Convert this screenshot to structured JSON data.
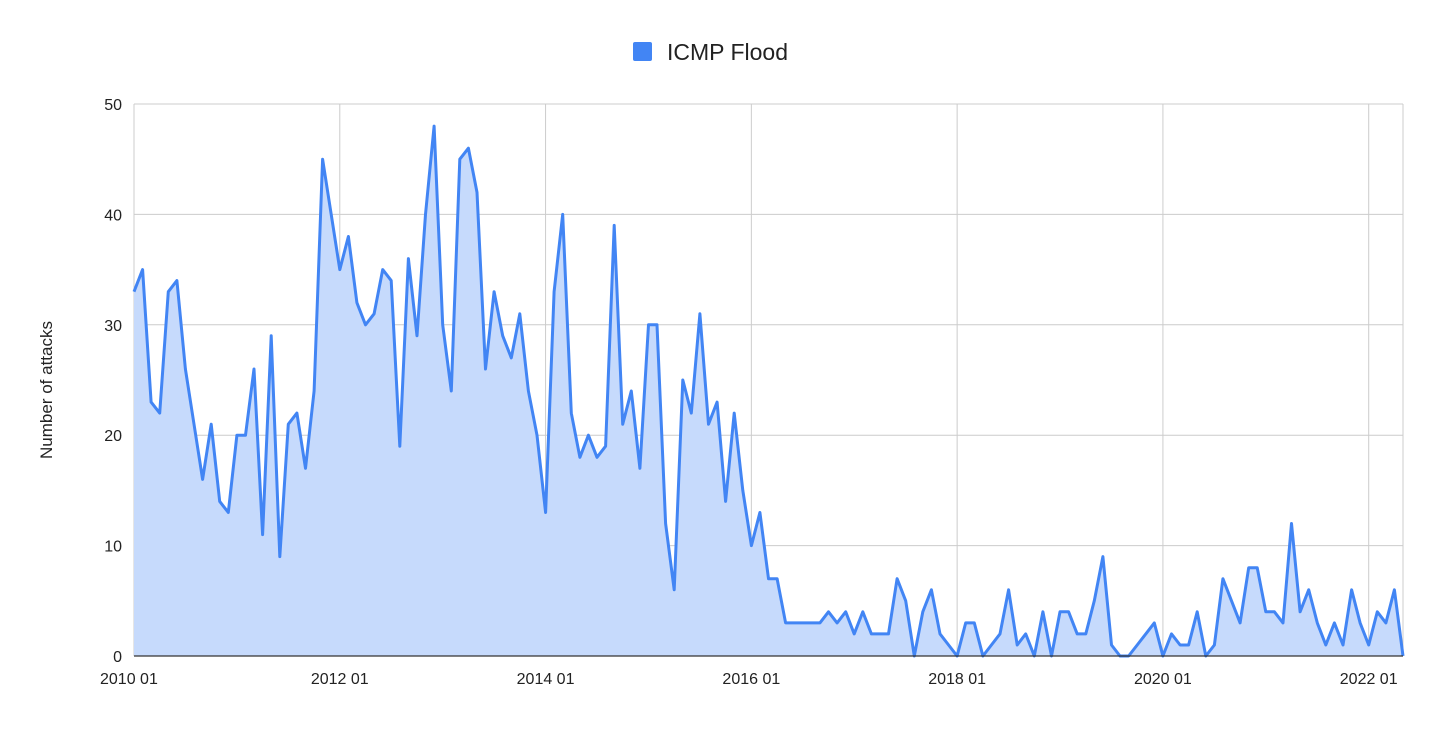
{
  "chart_data": {
    "type": "area",
    "title": "",
    "xlabel": "",
    "ylabel": "Number of attacks",
    "ylim": [
      0,
      50
    ],
    "yticks": [
      0,
      10,
      20,
      30,
      40,
      50
    ],
    "x_start": "2010-01",
    "x_end": "2022-05",
    "x_interval": "month",
    "xtick_labels": [
      "2010 01",
      "2012 01",
      "2014 01",
      "2016 01",
      "2018 01",
      "2020 01",
      "2022 01"
    ],
    "xtick_months": [
      "2010-01",
      "2012-01",
      "2014-01",
      "2016-01",
      "2018-01",
      "2020-01",
      "2022-01"
    ],
    "grid": true,
    "legend_position": "top",
    "colors": {
      "line": "#4285f4",
      "fill": "#c6dafc"
    },
    "series": [
      {
        "name": "ICMP Flood",
        "values": [
          33,
          35,
          23,
          22,
          33,
          34,
          26,
          21,
          16,
          21,
          14,
          13,
          20,
          20,
          26,
          11,
          29,
          9,
          21,
          22,
          17,
          24,
          45,
          40,
          35,
          38,
          32,
          30,
          31,
          35,
          34,
          19,
          36,
          29,
          40,
          48,
          30,
          24,
          45,
          46,
          42,
          26,
          33,
          29,
          27,
          31,
          24,
          20,
          13,
          33,
          40,
          22,
          18,
          20,
          18,
          19,
          39,
          21,
          24,
          17,
          30,
          30,
          12,
          6,
          25,
          22,
          31,
          21,
          23,
          14,
          22,
          15,
          10,
          13,
          7,
          7,
          3,
          3,
          3,
          3,
          3,
          4,
          3,
          4,
          2,
          4,
          2,
          2,
          2,
          7,
          5,
          0,
          4,
          6,
          2,
          1,
          0,
          3,
          3,
          0,
          1,
          2,
          6,
          1,
          2,
          0,
          4,
          0,
          4,
          4,
          2,
          2,
          5,
          9,
          1,
          0,
          0,
          1,
          2,
          3,
          0,
          2,
          1,
          1,
          4,
          0,
          1,
          7,
          5,
          3,
          8,
          8,
          4,
          4,
          3,
          12,
          4,
          6,
          3,
          1,
          3,
          1,
          6,
          3,
          1,
          4,
          3,
          6,
          0
        ]
      }
    ]
  }
}
